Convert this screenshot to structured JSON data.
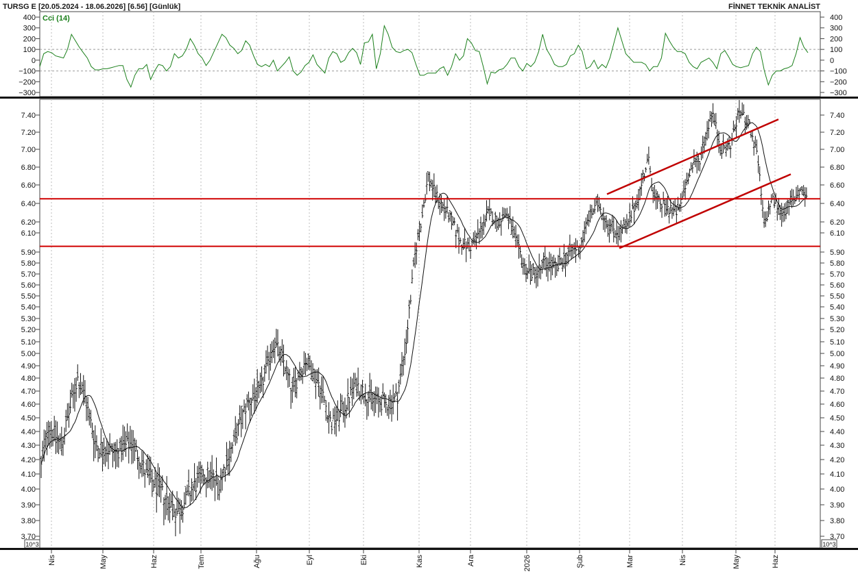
{
  "header": {
    "title": "TURSG E  [20.05.2024 - 18.06.2026]  [6.56]  [Günlük]",
    "brand": "FİNNET TEKNİK ANALİST"
  },
  "cci_panel": {
    "label": "Cci (14)",
    "ticks": [
      "400",
      "300",
      "200",
      "100",
      "0",
      "−100",
      "−200",
      "−300"
    ],
    "tick_values": [
      400,
      300,
      200,
      100,
      0,
      -100,
      -200,
      -300
    ],
    "ref_levels": [
      100,
      -100
    ],
    "line_color": "#1a7f1a"
  },
  "price_panel": {
    "ticks": [
      "7.40",
      "7.20",
      "7.00",
      "6.80",
      "6.60",
      "6.40",
      "6.20",
      "6.10",
      "5.90",
      "5.80",
      "5.70",
      "5.60",
      "5.50",
      "5.40",
      "5.30",
      "5.20",
      "5.10",
      "5.00",
      "4.90",
      "4.80",
      "4.70",
      "4.60",
      "4.50",
      "4.40",
      "4.30",
      "4.20",
      "4.10",
      "4.00",
      "3.90",
      "3.80",
      "3.70"
    ],
    "unit_label": "10^3",
    "horizontal_levels": [
      6.45,
      5.96
    ],
    "level_color": "#d00000",
    "bar_color": "#111111"
  },
  "months": [
    "Nis",
    "May",
    "Haz",
    "Tem",
    "Ağu",
    "Eyl",
    "Eki",
    "Kas",
    "Ara",
    "2026",
    "Şub",
    "Mar",
    "Nis",
    "May",
    "Haz"
  ],
  "chart_data": [
    {
      "type": "line",
      "name": "Cci (14)",
      "ylim": [
        -300,
        400
      ],
      "values": [
        -60,
        60,
        80,
        70,
        40,
        30,
        20,
        100,
        240,
        180,
        120,
        70,
        20,
        -60,
        -90,
        -90,
        -80,
        -80,
        -70,
        -60,
        -50,
        -50,
        -180,
        -250,
        -140,
        -80,
        -80,
        -40,
        -180,
        -100,
        -40,
        -50,
        -100,
        -60,
        60,
        20,
        40,
        100,
        200,
        140,
        60,
        20,
        -50,
        0,
        80,
        160,
        240,
        210,
        140,
        110,
        60,
        90,
        180,
        140,
        40,
        -40,
        -60,
        -40,
        -60,
        0,
        -100,
        -60,
        -20,
        30,
        -100,
        -140,
        -110,
        -50,
        -20,
        50,
        -40,
        -80,
        -120,
        20,
        80,
        60,
        -20,
        0,
        70,
        110,
        70,
        -40,
        160,
        170,
        240,
        -80,
        60,
        320,
        240,
        120,
        80,
        70,
        90,
        100,
        70,
        -40,
        -140,
        -140,
        -120,
        -120,
        -120,
        -80,
        -60,
        -140,
        -60,
        60,
        0,
        40,
        200,
        160,
        90,
        80,
        -60,
        -220,
        -110,
        -120,
        -90,
        -80,
        -40,
        20,
        20,
        -60,
        -100,
        -30,
        -60,
        -20,
        80,
        240,
        100,
        40,
        -40,
        -60,
        -60,
        -40,
        40,
        60,
        140,
        80,
        -80,
        -60,
        0,
        -80,
        -40,
        -70,
        20,
        160,
        300,
        180,
        60,
        20,
        -20,
        -20,
        -20,
        -40,
        -100,
        -60,
        -60,
        20,
        250,
        180,
        120,
        80,
        80,
        60,
        -20,
        -60,
        -80,
        -20,
        0,
        20,
        -20,
        -80,
        60,
        90,
        30,
        -40,
        -60,
        -70,
        -60,
        -50,
        60,
        120,
        80,
        -100,
        -230,
        -140,
        -100,
        -100,
        -80,
        -70,
        -50,
        60,
        210,
        120,
        70
      ],
      "ref_lines": [
        100,
        -100
      ]
    },
    {
      "type": "ohlc",
      "name": "TURSG E",
      "ylim": [
        3.67,
        7.55
      ],
      "scale": "custom-stepped",
      "approx_bars": 525,
      "moving_average": true,
      "horizontal_levels": [
        6.45,
        5.96
      ],
      "channel": {
        "upper": {
          "start": 6.5,
          "end": 7.35
        },
        "lower": {
          "start": 5.94,
          "end": 6.72
        }
      },
      "months": [
        "Nis",
        "May",
        "Haz",
        "Tem",
        "Ağu",
        "Eyl",
        "Eki",
        "Kas",
        "Ara",
        "2026",
        "Şub",
        "Mar",
        "Nis",
        "May",
        "Haz"
      ]
    }
  ]
}
